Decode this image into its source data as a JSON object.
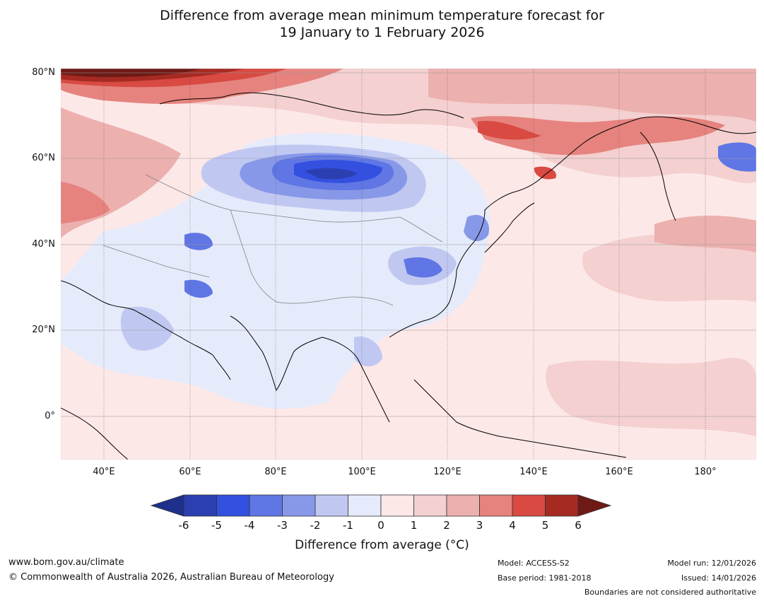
{
  "title_line1": "Difference from average mean minimum temperature forecast for",
  "title_line2": "19 January to 1 February 2026",
  "lat_labels": [
    "80°N",
    "60°N",
    "40°N",
    "20°N",
    "0°"
  ],
  "lon_labels": [
    "40°E",
    "60°E",
    "80°E",
    "100°E",
    "120°E",
    "140°E",
    "160°E",
    "180°"
  ],
  "colorbar": {
    "label": "Difference from average (°C)",
    "ticks": [
      "-6",
      "-5",
      "-4",
      "-3",
      "-2",
      "-1",
      "0",
      "1",
      "2",
      "3",
      "4",
      "5",
      "6"
    ],
    "colors": [
      "#1f2f8c",
      "#2b3fb0",
      "#3350e0",
      "#5f76e4",
      "#8898e8",
      "#c0c8f2",
      "#e6ebfb",
      "#fde8e8",
      "#f4d0d0",
      "#ecb0ae",
      "#e6837e",
      "#d84a42",
      "#a52a22",
      "#6e1a16"
    ]
  },
  "map_colors": {
    "land_line": "#000000",
    "border_line": "#808080",
    "grid_line": "#555555"
  },
  "footer": {
    "website": "www.bom.gov.au/climate",
    "copyright": "© Commonwealth of Australia 2026, Australian Bureau of Meteorology",
    "model": "Model: ACCESS-S2",
    "base_period": "Base period: 1981-2018",
    "model_run": "Model run: 12/01/2026",
    "issued": "Issued: 14/01/2026",
    "disclaimer": "Boundaries are not considered authoritative"
  }
}
